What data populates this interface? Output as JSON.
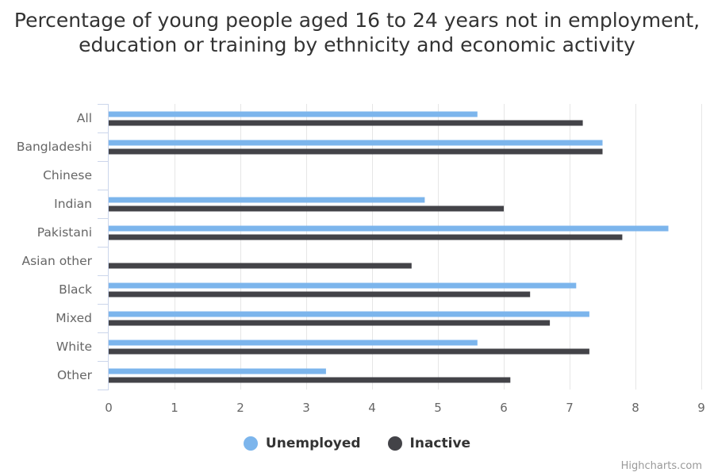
{
  "chart_data": {
    "type": "bar",
    "orientation": "horizontal",
    "title": "Percentage of young people aged 16 to 24 years not in employment, education or training by ethnicity and economic activity",
    "categories": [
      "All",
      "Bangladeshi",
      "Chinese",
      "Indian",
      "Pakistani",
      "Asian other",
      "Black",
      "Mixed",
      "White",
      "Other"
    ],
    "series": [
      {
        "name": "Unemployed",
        "color": "#7cb5ec",
        "values": [
          5.6,
          7.5,
          null,
          4.8,
          8.5,
          null,
          7.1,
          7.3,
          5.6,
          3.3
        ]
      },
      {
        "name": "Inactive",
        "color": "#434348",
        "values": [
          7.2,
          7.5,
          null,
          6.0,
          7.8,
          4.6,
          6.4,
          6.7,
          7.3,
          6.1
        ]
      }
    ],
    "xlim": [
      0,
      9
    ],
    "ticks": [
      0,
      1,
      2,
      3,
      4,
      5,
      6,
      7,
      8,
      9
    ],
    "grid": true,
    "legend_position": "bottom-center"
  },
  "credits": "Highcharts.com"
}
